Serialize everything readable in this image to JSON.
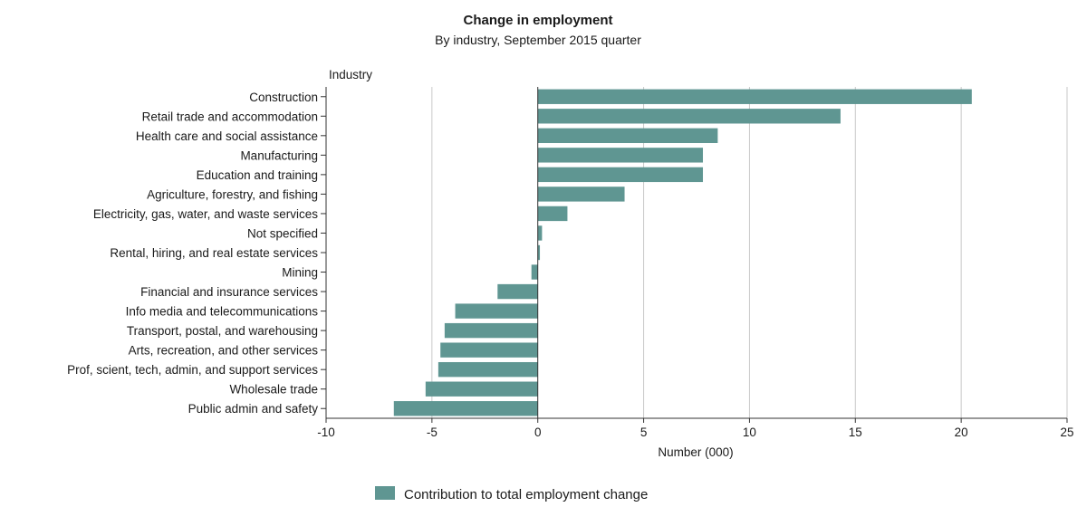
{
  "chart_data": {
    "type": "bar",
    "orientation": "horizontal",
    "title": "Change in employment",
    "subtitle": "By industry, September 2015 quarter",
    "category_axis_label": "Industry",
    "xlabel": "Number (000)",
    "xlim": [
      -10,
      25
    ],
    "xticks": [
      -10,
      -5,
      0,
      5,
      10,
      15,
      20,
      25
    ],
    "grid": "vertical",
    "legend_position": "bottom-center",
    "color": "#5f9692",
    "categories": [
      "Construction",
      "Retail trade and accommodation",
      "Health care and social assistance",
      "Manufacturing",
      "Education and training",
      "Agriculture, forestry, and fishing",
      "Electricity, gas, water, and waste services",
      "Not specified",
      "Rental, hiring, and real estate services",
      "Mining",
      "Financial and insurance services",
      "Info media and telecommunications",
      "Transport, postal, and warehousing",
      "Arts, recreation, and other services",
      "Prof, scient, tech, admin, and support services",
      "Wholesale trade",
      "Public admin and safety"
    ],
    "series": [
      {
        "name": "Contribution to total employment change",
        "values": [
          20.5,
          14.3,
          8.5,
          7.8,
          7.8,
          4.1,
          1.4,
          0.2,
          0.1,
          -0.3,
          -1.9,
          -3.9,
          -4.4,
          -4.6,
          -4.7,
          -5.3,
          -6.8
        ]
      }
    ]
  }
}
